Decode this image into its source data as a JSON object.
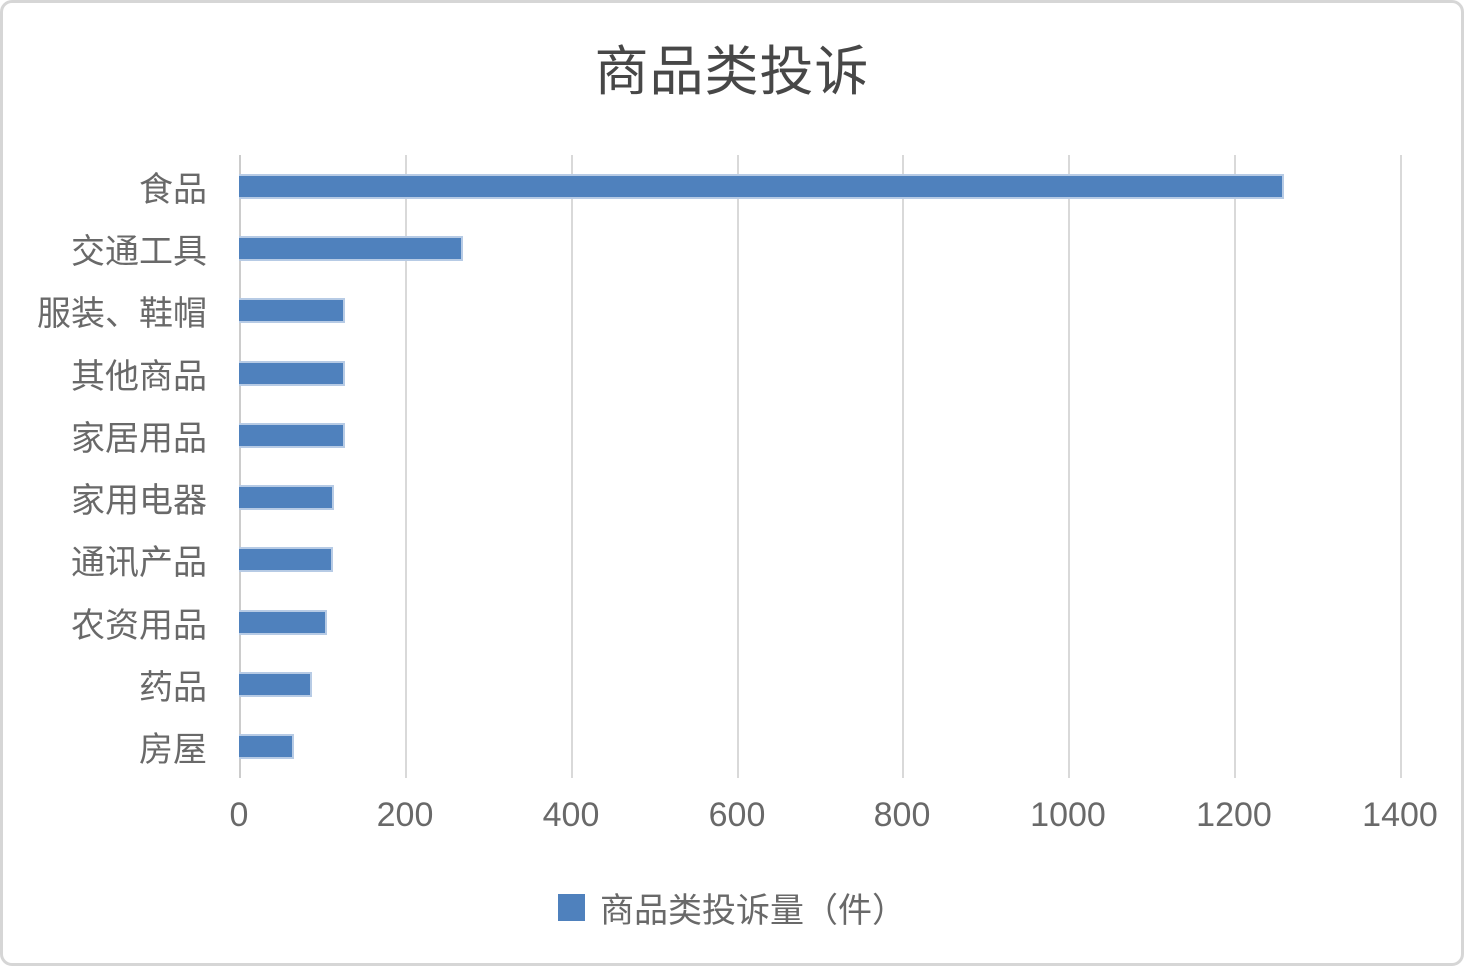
{
  "title": "商品类投诉",
  "legend": {
    "label": "商品类投诉量（件）"
  },
  "colors": {
    "bar_fill": "#4f81bd",
    "bar_border": "#b7cbe5",
    "gridline": "#d9d9d9",
    "label_text": "#696969",
    "title_text": "#474747",
    "frame_border": "#d6d6d6"
  },
  "chart_data": {
    "type": "bar",
    "orientation": "horizontal",
    "title": "商品类投诉",
    "series_name": "商品类投诉量（件）",
    "categories": [
      "食品",
      "交通工具",
      "服装、鞋帽",
      "其他商品",
      "家居用品",
      "家用电器",
      "通讯产品",
      "农资用品",
      "药品",
      "房屋"
    ],
    "values": [
      1260,
      270,
      128,
      128,
      128,
      115,
      113,
      106,
      88,
      66
    ],
    "xlabel": "",
    "ylabel": "",
    "xlim": [
      0,
      1400
    ],
    "x_ticks": [
      0,
      200,
      400,
      600,
      800,
      1000,
      1200,
      1400
    ],
    "grid": "vertical",
    "legend_position": "bottom"
  }
}
